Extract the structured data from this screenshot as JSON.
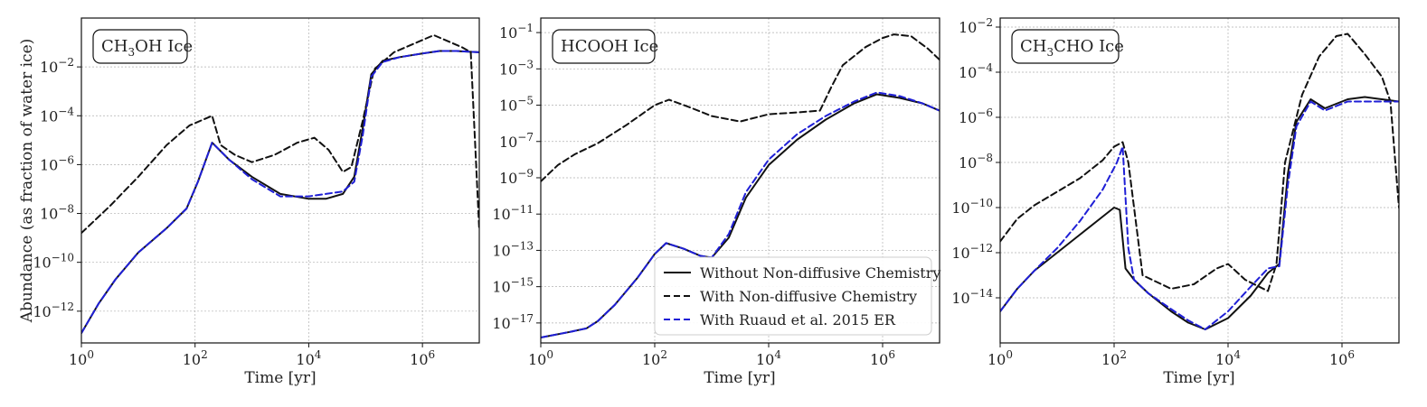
{
  "figure": {
    "ylabel": "Abundance (as fraction of water ice)",
    "xlabel": "Time [yr]"
  },
  "legend": {
    "entries": [
      {
        "label": "Without Non-diffusive Chemistry",
        "style": "solid",
        "color": "#111111"
      },
      {
        "label": "With Non-diffusive Chemistry",
        "style": "dashed",
        "color": "#111111"
      },
      {
        "label": "With Ruaud et al. 2015 ER",
        "style": "dashed",
        "color": "#1f1fd6"
      }
    ]
  },
  "chart_data": [
    {
      "type": "line",
      "title": "CH3OH Ice",
      "title_main": "CH",
      "title_sub": "3",
      "title_rest": "OH Ice",
      "xlabel": "Time [yr]",
      "ylabel": "Abundance (as fraction of water ice)",
      "xscale": "log",
      "yscale": "log",
      "xlim_log": [
        0,
        7
      ],
      "ylim_log": [
        -13.3,
        0.0
      ],
      "x_ticks": [
        {
          "base": "10",
          "exp": "0",
          "v": 0
        },
        {
          "base": "10",
          "exp": "2",
          "v": 2
        },
        {
          "base": "10",
          "exp": "4",
          "v": 4
        },
        {
          "base": "10",
          "exp": "6",
          "v": 6
        }
      ],
      "y_ticks": [
        {
          "base": "10",
          "exp": "−12",
          "v": -12
        },
        {
          "base": "10",
          "exp": "−10",
          "v": -10
        },
        {
          "base": "10",
          "exp": "−8",
          "v": -8
        },
        {
          "base": "10",
          "exp": "−6",
          "v": -6
        },
        {
          "base": "10",
          "exp": "−4",
          "v": -4
        },
        {
          "base": "10",
          "exp": "−2",
          "v": -2
        }
      ],
      "series": [
        {
          "name": "Without Non-diffusive Chemistry",
          "log_x": [
            0,
            0.3,
            0.6,
            1,
            1.5,
            1.85,
            2.05,
            2.3,
            2.6,
            3,
            3.5,
            4,
            4.3,
            4.6,
            4.8,
            4.95,
            5.1,
            5.3,
            5.6,
            6,
            6.3,
            6.6,
            7
          ],
          "log_y": [
            -12.9,
            -11.7,
            -10.7,
            -9.6,
            -8.6,
            -7.8,
            -6.7,
            -5.1,
            -5.8,
            -6.5,
            -7.2,
            -7.4,
            -7.4,
            -7.2,
            -6.5,
            -4.5,
            -2.3,
            -1.75,
            -1.6,
            -1.45,
            -1.35,
            -1.35,
            -1.4
          ]
        },
        {
          "name": "With Non-diffusive Chemistry",
          "log_x": [
            0,
            0.5,
            1,
            1.5,
            1.9,
            2.3,
            2.45,
            2.7,
            3,
            3.4,
            3.8,
            4.1,
            4.35,
            4.6,
            4.75,
            4.95,
            5.15,
            5.5,
            5.9,
            6.2,
            6.45,
            6.7,
            6.85,
            7
          ],
          "log_y": [
            -8.8,
            -7.7,
            -6.5,
            -5.2,
            -4.4,
            -4.0,
            -5.2,
            -5.6,
            -5.9,
            -5.6,
            -5.1,
            -4.9,
            -5.4,
            -6.3,
            -6.1,
            -4.2,
            -2.1,
            -1.4,
            -1.0,
            -0.7,
            -0.95,
            -1.2,
            -1.4,
            -8.7
          ]
        },
        {
          "name": "With Ruaud et al. 2015 ER",
          "log_x": [
            0,
            0.3,
            0.6,
            1,
            1.5,
            1.85,
            2.05,
            2.3,
            2.6,
            3,
            3.5,
            4,
            4.3,
            4.6,
            4.8,
            4.95,
            5.1,
            5.3,
            5.6,
            6,
            6.3,
            6.6,
            7
          ],
          "log_y": [
            -12.9,
            -11.7,
            -10.7,
            -9.6,
            -8.6,
            -7.8,
            -6.7,
            -5.1,
            -5.8,
            -6.6,
            -7.3,
            -7.3,
            -7.2,
            -7.1,
            -6.7,
            -4.8,
            -2.4,
            -1.8,
            -1.6,
            -1.45,
            -1.35,
            -1.35,
            -1.4
          ]
        }
      ]
    },
    {
      "type": "line",
      "title": "HCOOH Ice",
      "title_main": "HCOOH Ice",
      "title_sub": "",
      "title_rest": "",
      "xlabel": "Time [yr]",
      "ylabel": "",
      "xscale": "log",
      "yscale": "log",
      "xlim_log": [
        0,
        7
      ],
      "ylim_log": [
        -18.1,
        -0.2
      ],
      "x_ticks": [
        {
          "base": "10",
          "exp": "0",
          "v": 0
        },
        {
          "base": "10",
          "exp": "2",
          "v": 2
        },
        {
          "base": "10",
          "exp": "4",
          "v": 4
        },
        {
          "base": "10",
          "exp": "6",
          "v": 6
        }
      ],
      "y_ticks": [
        {
          "base": "10",
          "exp": "−17",
          "v": -17
        },
        {
          "base": "10",
          "exp": "−15",
          "v": -15
        },
        {
          "base": "10",
          "exp": "−13",
          "v": -13
        },
        {
          "base": "10",
          "exp": "−11",
          "v": -11
        },
        {
          "base": "10",
          "exp": "−9",
          "v": -9
        },
        {
          "base": "10",
          "exp": "−7",
          "v": -7
        },
        {
          "base": "10",
          "exp": "−5",
          "v": -5
        },
        {
          "base": "10",
          "exp": "−3",
          "v": -3
        },
        {
          "base": "10",
          "exp": "−1",
          "v": -1
        }
      ],
      "series": [
        {
          "name": "Without Non-diffusive Chemistry",
          "log_x": [
            0,
            0.5,
            0.8,
            1,
            1.3,
            1.7,
            2.0,
            2.2,
            2.5,
            2.8,
            3.0,
            3.3,
            3.6,
            4.0,
            4.5,
            5.0,
            5.5,
            5.9,
            6.3,
            6.7,
            7
          ],
          "log_y": [
            -17.8,
            -17.5,
            -17.3,
            -16.9,
            -16.0,
            -14.5,
            -13.2,
            -12.6,
            -12.9,
            -13.3,
            -13.4,
            -12.3,
            -10.1,
            -8.3,
            -6.9,
            -5.8,
            -4.9,
            -4.4,
            -4.6,
            -4.9,
            -5.3
          ]
        },
        {
          "name": "With Non-diffusive Chemistry",
          "log_x": [
            0,
            0.3,
            0.6,
            1,
            1.5,
            2.0,
            2.25,
            2.6,
            3.0,
            3.5,
            4.0,
            4.5,
            4.9,
            5.1,
            5.3,
            5.7,
            6.0,
            6.2,
            6.5,
            6.8,
            7
          ],
          "log_y": [
            -9.2,
            -8.3,
            -7.7,
            -7.1,
            -6.1,
            -5.0,
            -4.7,
            -5.1,
            -5.6,
            -5.9,
            -5.5,
            -5.4,
            -5.3,
            -4.0,
            -2.8,
            -1.8,
            -1.3,
            -1.1,
            -1.2,
            -1.9,
            -2.5
          ]
        },
        {
          "name": "With Ruaud et al. 2015 ER",
          "log_x": [
            0,
            0.5,
            0.8,
            1,
            1.3,
            1.7,
            2.0,
            2.2,
            2.5,
            2.8,
            3.0,
            3.3,
            3.6,
            4.0,
            4.5,
            5.0,
            5.5,
            5.9,
            6.3,
            6.7,
            7
          ],
          "log_y": [
            -17.8,
            -17.5,
            -17.3,
            -16.9,
            -16.0,
            -14.5,
            -13.2,
            -12.6,
            -12.9,
            -13.3,
            -13.4,
            -12.1,
            -9.8,
            -8.0,
            -6.6,
            -5.6,
            -4.8,
            -4.3,
            -4.5,
            -4.9,
            -5.3
          ]
        }
      ]
    },
    {
      "type": "line",
      "title": "CH3CHO Ice",
      "title_main": "CH",
      "title_sub": "3",
      "title_rest": "CHO Ice",
      "xlabel": "Time [yr]",
      "ylabel": "",
      "xscale": "log",
      "yscale": "log",
      "xlim_log": [
        0,
        7
      ],
      "ylim_log": [
        -16.0,
        -1.6
      ],
      "x_ticks": [
        {
          "base": "10",
          "exp": "0",
          "v": 0
        },
        {
          "base": "10",
          "exp": "2",
          "v": 2
        },
        {
          "base": "10",
          "exp": "4",
          "v": 4
        },
        {
          "base": "10",
          "exp": "6",
          "v": 6
        }
      ],
      "y_ticks": [
        {
          "base": "10",
          "exp": "−14",
          "v": -14
        },
        {
          "base": "10",
          "exp": "−12",
          "v": -12
        },
        {
          "base": "10",
          "exp": "−10",
          "v": -10
        },
        {
          "base": "10",
          "exp": "−8",
          "v": -8
        },
        {
          "base": "10",
          "exp": "−6",
          "v": -6
        },
        {
          "base": "10",
          "exp": "−4",
          "v": -4
        },
        {
          "base": "10",
          "exp": "−2",
          "v": -2
        }
      ],
      "series": [
        {
          "name": "Without Non-diffusive Chemistry",
          "log_x": [
            0,
            0.3,
            0.6,
            1,
            1.4,
            1.8,
            2.0,
            2.1,
            2.2,
            2.35,
            2.6,
            3.0,
            3.3,
            3.6,
            4.0,
            4.4,
            4.7,
            4.9,
            5.05,
            5.2,
            5.45,
            5.7,
            5.9,
            6.1,
            6.4,
            6.7,
            7
          ],
          "log_y": [
            -14.6,
            -13.6,
            -12.8,
            -12.0,
            -11.2,
            -10.4,
            -10.0,
            -10.1,
            -12.7,
            -13.2,
            -13.8,
            -14.6,
            -15.1,
            -15.4,
            -14.9,
            -13.9,
            -12.9,
            -12.5,
            -8.5,
            -6.2,
            -5.2,
            -5.6,
            -5.4,
            -5.2,
            -5.1,
            -5.2,
            -5.3
          ]
        },
        {
          "name": "With Non-diffusive Chemistry",
          "log_x": [
            0,
            0.3,
            0.6,
            1,
            1.4,
            1.8,
            2.0,
            2.15,
            2.25,
            2.5,
            3.0,
            3.4,
            3.8,
            4.0,
            4.3,
            4.7,
            4.85,
            5.0,
            5.3,
            5.6,
            5.9,
            6.1,
            6.4,
            6.7,
            6.85,
            7
          ],
          "log_y": [
            -11.5,
            -10.5,
            -9.9,
            -9.3,
            -8.7,
            -7.9,
            -7.3,
            -7.1,
            -8.0,
            -13.0,
            -13.6,
            -13.4,
            -12.7,
            -12.5,
            -13.2,
            -13.7,
            -12.5,
            -8.0,
            -5.0,
            -3.3,
            -2.4,
            -2.3,
            -3.2,
            -4.2,
            -5.3,
            -10.0
          ]
        },
        {
          "name": "With Ruaud et al. 2015 ER",
          "log_x": [
            0,
            0.3,
            0.6,
            1,
            1.4,
            1.8,
            2.05,
            2.15,
            2.25,
            2.35,
            2.6,
            3.0,
            3.3,
            3.6,
            4.0,
            4.4,
            4.7,
            4.9,
            5.05,
            5.2,
            5.45,
            5.7,
            5.9,
            6.1,
            6.4,
            6.7,
            7
          ],
          "log_y": [
            -14.6,
            -13.6,
            -12.8,
            -11.8,
            -10.6,
            -9.2,
            -8.0,
            -7.3,
            -11.8,
            -13.2,
            -13.8,
            -14.5,
            -15.0,
            -15.4,
            -14.6,
            -13.5,
            -12.7,
            -12.6,
            -9.0,
            -6.4,
            -5.3,
            -5.7,
            -5.5,
            -5.3,
            -5.3,
            -5.3,
            -5.3
          ]
        }
      ]
    }
  ]
}
